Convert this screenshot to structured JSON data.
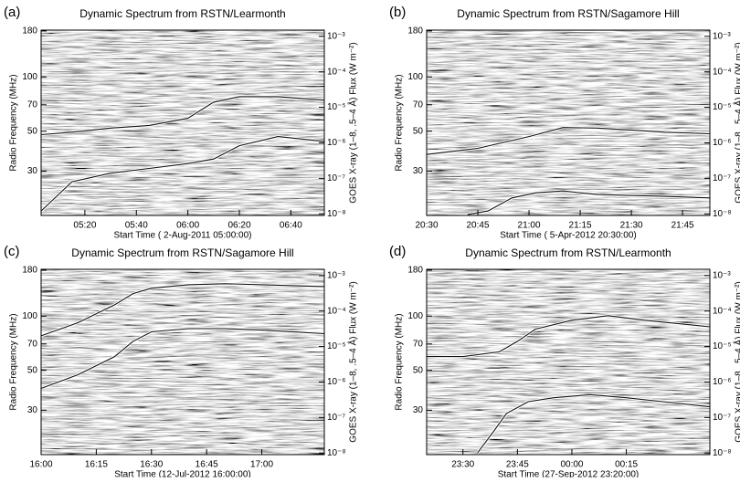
{
  "chart_data": [
    {
      "type": "line",
      "panel_label": "(a)",
      "title": "Dynamic Spectrum from RSTN/Learmonth",
      "x_label": "Start Time ( 2-Aug-2011 05:00:00)",
      "y_label": "Radio Frequency (MHz)",
      "y2_label": "GOES X-ray (1–8, .5–4 Å) Flux (W m⁻²)",
      "xlim": [
        3,
        113
      ],
      "xticks": [
        {
          "value": 20,
          "label": "05:20"
        },
        {
          "value": 40,
          "label": "05:40"
        },
        {
          "value": 60,
          "label": "06:00"
        },
        {
          "value": 80,
          "label": "06:20"
        },
        {
          "value": 100,
          "label": "06:40"
        }
      ],
      "ylim": [
        17,
        182
      ],
      "yticks": [
        30,
        50,
        70,
        100,
        180
      ],
      "ylog": true,
      "y2lim": [
        9e-09,
        0.0015
      ],
      "y2log": true,
      "y2ticks": [
        {
          "value": 1e-08,
          "label": "10⁻⁸"
        },
        {
          "value": 1e-07,
          "label": "10⁻⁷"
        },
        {
          "value": 1e-06,
          "label": "10⁻⁶"
        },
        {
          "value": 1e-05,
          "label": "10⁻⁵"
        },
        {
          "value": 0.0001,
          "label": "10⁻⁴"
        },
        {
          "value": 0.001,
          "label": "10⁻³"
        }
      ],
      "series": [
        {
          "color": "#111111",
          "axis": "y2",
          "x": [
            3,
            15,
            30,
            45,
            60,
            70,
            80,
            95,
            113
          ],
          "values": [
            1.7e-06,
            2e-06,
            2.6e-06,
            3.1e-06,
            4.9e-06,
            1.4e-05,
            2e-05,
            2e-05,
            1.6e-05
          ]
        },
        {
          "color": "#111111",
          "axis": "y2",
          "x": [
            3,
            15,
            30,
            45,
            60,
            70,
            80,
            95,
            113
          ],
          "values": [
            1.2e-08,
            8e-08,
            1.4e-07,
            1.9e-07,
            2.6e-07,
            3.5e-07,
            8.3e-07,
            1.5e-06,
            1.1e-06
          ]
        }
      ]
    },
    {
      "type": "line",
      "panel_label": "(b)",
      "title": "Dynamic Spectrum from RSTN/Sagamore Hill",
      "x_label": "Start Time ( 5-Apr-2012 20:30:00)",
      "y_label": "Radio Frequency (MHz)",
      "y2_label": "GOES X-ray (1–8, .5–4 Å) Flux (W m⁻²)",
      "xlim": [
        0,
        83
      ],
      "xticks": [
        {
          "value": 0,
          "label": "20:30"
        },
        {
          "value": 15,
          "label": "20:45"
        },
        {
          "value": 30,
          "label": "21:00"
        },
        {
          "value": 45,
          "label": "21:15"
        },
        {
          "value": 60,
          "label": "21:30"
        },
        {
          "value": 75,
          "label": "21:45"
        }
      ],
      "ylim": [
        17,
        182
      ],
      "yticks": [
        30,
        50,
        70,
        100,
        180
      ],
      "ylog": true,
      "y2lim": [
        9e-09,
        0.0015
      ],
      "y2log": true,
      "y2ticks": [
        {
          "value": 1e-08,
          "label": "10⁻⁸"
        },
        {
          "value": 1e-07,
          "label": "10⁻⁷"
        },
        {
          "value": 1e-06,
          "label": "10⁻⁶"
        },
        {
          "value": 1e-05,
          "label": "10⁻⁵"
        },
        {
          "value": 0.0001,
          "label": "10⁻⁴"
        },
        {
          "value": 0.001,
          "label": "10⁻³"
        }
      ],
      "series": [
        {
          "color": "#111111",
          "axis": "y2",
          "x": [
            0,
            15,
            30,
            40,
            50,
            60,
            70,
            83
          ],
          "values": [
            4.7e-07,
            7e-07,
            1.5e-06,
            2.7e-06,
            2.6e-06,
            2.3e-06,
            2e-06,
            1.8e-06
          ]
        },
        {
          "color": "#111111",
          "axis": "y2",
          "x": [
            12,
            18,
            25,
            32,
            40,
            50,
            60,
            70,
            83
          ],
          "values": [
            9.5e-09,
            1.2e-08,
            2.8e-08,
            3.9e-08,
            4.4e-08,
            3.5e-08,
            3.3e-08,
            3.1e-08,
            2.8e-08
          ]
        }
      ]
    },
    {
      "type": "line",
      "panel_label": "(c)",
      "title": "Dynamic Spectrum from RSTN/Sagamore Hill",
      "x_label": "Start Time (12-Jul-2012 16:00:00)",
      "y_label": "Radio Frequency (MHz)",
      "y2_label": "GOES X-ray (1–8, .5–4 Å) Flux (W m⁻²)",
      "xlim": [
        0,
        77
      ],
      "xticks": [
        {
          "value": 0,
          "label": "16:00"
        },
        {
          "value": 15,
          "label": "16:15"
        },
        {
          "value": 30,
          "label": "16:30"
        },
        {
          "value": 45,
          "label": "16:45"
        },
        {
          "value": 60,
          "label": "17:00"
        }
      ],
      "ylim": [
        17,
        182
      ],
      "yticks": [
        30,
        50,
        70,
        100,
        180
      ],
      "ylog": true,
      "y2lim": [
        9e-09,
        0.0015
      ],
      "y2log": true,
      "y2ticks": [
        {
          "value": 1e-08,
          "label": "10⁻⁸"
        },
        {
          "value": 1e-07,
          "label": "10⁻⁷"
        },
        {
          "value": 1e-06,
          "label": "10⁻⁶"
        },
        {
          "value": 1e-05,
          "label": "10⁻⁵"
        },
        {
          "value": 0.0001,
          "label": "10⁻⁴"
        },
        {
          "value": 0.001,
          "label": "10⁻³"
        }
      ],
      "series": [
        {
          "color": "#111111",
          "axis": "y2",
          "x": [
            0,
            10,
            20,
            25,
            30,
            40,
            50,
            60,
            77
          ],
          "values": [
            2e-05,
            4.7e-05,
            0.00015,
            0.00031,
            0.00044,
            0.00055,
            0.00059,
            0.00055,
            0.00049
          ]
        },
        {
          "color": "#111111",
          "axis": "y2",
          "x": [
            0,
            10,
            20,
            25,
            30,
            40,
            50,
            60,
            77
          ],
          "values": [
            6.6e-07,
            1.6e-06,
            5.2e-06,
            1.4e-05,
            2.6e-05,
            3.2e-05,
            3.2e-05,
            2.9e-05,
            2.3e-05
          ]
        }
      ]
    },
    {
      "type": "line",
      "panel_label": "(d)",
      "title": "Dynamic Spectrum from RSTN/Learmonth",
      "x_label": "Start Time (27-Sep-2012 23:20:00)",
      "y_label": "Radio Frequency (MHz)",
      "y2_label": "GOES X-ray (1–8, .5–4 Å) Flux (W m⁻²)",
      "xlim": [
        0,
        78
      ],
      "xticks": [
        {
          "value": 10,
          "label": "23:30"
        },
        {
          "value": 25,
          "label": "23:45"
        },
        {
          "value": 40,
          "label": "00:00"
        },
        {
          "value": 55,
          "label": "00:15"
        }
      ],
      "ylim": [
        17,
        182
      ],
      "yticks": [
        30,
        50,
        70,
        100,
        180
      ],
      "ylog": true,
      "y2lim": [
        9e-09,
        0.0015
      ],
      "y2log": true,
      "y2ticks": [
        {
          "value": 1e-08,
          "label": "10⁻⁸"
        },
        {
          "value": 1e-07,
          "label": "10⁻⁷"
        },
        {
          "value": 1e-06,
          "label": "10⁻⁶"
        },
        {
          "value": 1e-05,
          "label": "10⁻⁵"
        },
        {
          "value": 0.0001,
          "label": "10⁻⁴"
        },
        {
          "value": 0.001,
          "label": "10⁻³"
        }
      ],
      "series": [
        {
          "color": "#111111",
          "axis": "y2",
          "x": [
            0,
            10,
            20,
            25,
            30,
            40,
            50,
            60,
            78
          ],
          "values": [
            5.2e-06,
            5.2e-06,
            7.1e-06,
            1.4e-05,
            3.1e-05,
            5.5e-05,
            7.4e-05,
            5.5e-05,
            3.6e-05
          ]
        },
        {
          "color": "#111111",
          "axis": "y2",
          "x": [
            14,
            18,
            22,
            28,
            35,
            45,
            55,
            65,
            78
          ],
          "values": [
            1e-08,
            3.5e-08,
            1.3e-07,
            2.8e-07,
            3.6e-07,
            4.4e-07,
            3.6e-07,
            2.8e-07,
            2e-07
          ]
        }
      ]
    }
  ]
}
